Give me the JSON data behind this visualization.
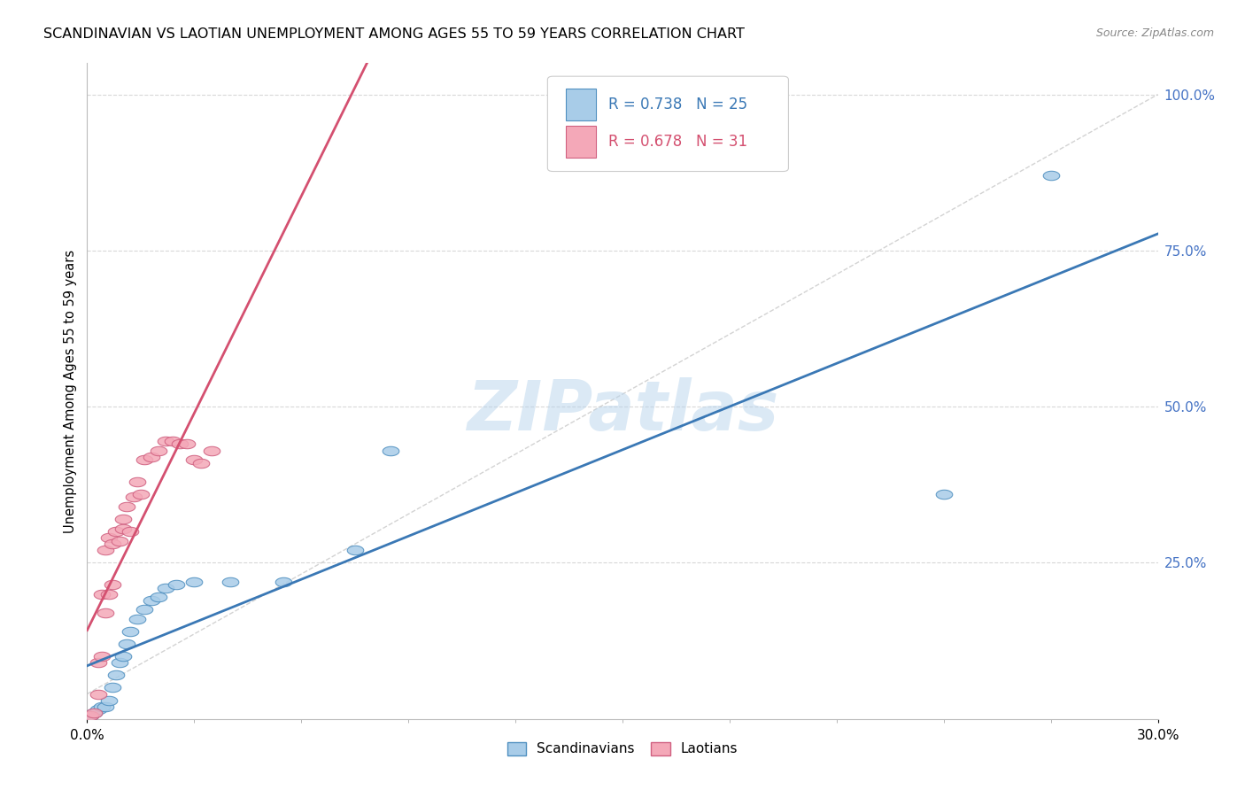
{
  "title": "SCANDINAVIAN VS LAOTIAN UNEMPLOYMENT AMONG AGES 55 TO 59 YEARS CORRELATION CHART",
  "source": "Source: ZipAtlas.com",
  "ylabel": "Unemployment Among Ages 55 to 59 years",
  "xlim": [
    0.0,
    0.3
  ],
  "ylim": [
    0.0,
    1.05
  ],
  "y_ticks_right": [
    0.25,
    0.5,
    0.75,
    1.0
  ],
  "y_tick_labels_right": [
    "25.0%",
    "50.0%",
    "75.0%",
    "100.0%"
  ],
  "background_color": "#ffffff",
  "grid_color": "#d8d8d8",
  "scandinavian_color": "#a8cce8",
  "laotian_color": "#f4a8b8",
  "blue_line_color": "#3a78b5",
  "pink_line_color": "#d45070",
  "dashed_line_color": "#c8c8c8",
  "legend_r_scan": "R = 0.738",
  "legend_n_scan": "N = 25",
  "legend_r_laot": "R = 0.678",
  "legend_n_laot": "N = 31",
  "scan_x": [
    0.001,
    0.002,
    0.003,
    0.004,
    0.005,
    0.006,
    0.007,
    0.008,
    0.009,
    0.01,
    0.011,
    0.012,
    0.014,
    0.016,
    0.018,
    0.02,
    0.022,
    0.025,
    0.03,
    0.04,
    0.055,
    0.075,
    0.085,
    0.24,
    0.27
  ],
  "scan_y": [
    0.005,
    0.01,
    0.015,
    0.02,
    0.02,
    0.03,
    0.05,
    0.07,
    0.09,
    0.1,
    0.12,
    0.14,
    0.16,
    0.175,
    0.19,
    0.195,
    0.21,
    0.215,
    0.22,
    0.22,
    0.22,
    0.27,
    0.43,
    0.36,
    0.87
  ],
  "laot_x": [
    0.001,
    0.002,
    0.003,
    0.003,
    0.004,
    0.004,
    0.005,
    0.005,
    0.006,
    0.006,
    0.007,
    0.007,
    0.008,
    0.009,
    0.01,
    0.01,
    0.011,
    0.012,
    0.013,
    0.014,
    0.015,
    0.016,
    0.018,
    0.02,
    0.022,
    0.024,
    0.026,
    0.028,
    0.03,
    0.032,
    0.035
  ],
  "laot_y": [
    0.005,
    0.01,
    0.04,
    0.09,
    0.1,
    0.2,
    0.17,
    0.27,
    0.2,
    0.29,
    0.215,
    0.28,
    0.3,
    0.285,
    0.305,
    0.32,
    0.34,
    0.3,
    0.355,
    0.38,
    0.36,
    0.415,
    0.42,
    0.43,
    0.445,
    0.445,
    0.44,
    0.44,
    0.415,
    0.41,
    0.43
  ]
}
